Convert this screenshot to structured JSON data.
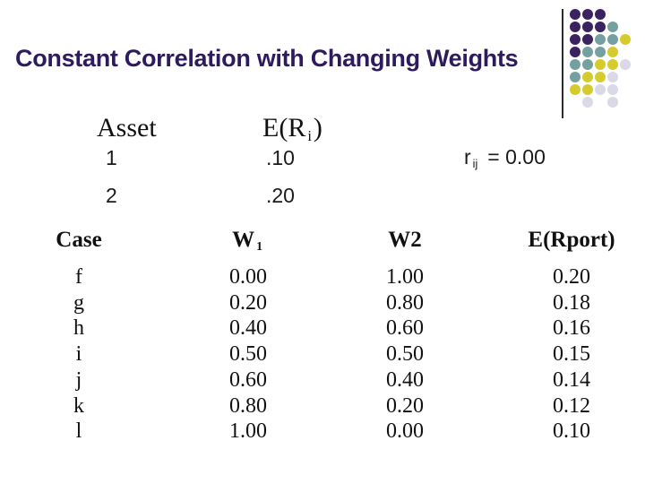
{
  "title": "Constant Correlation with Changing Weights",
  "colors": {
    "title": "#2d1b5e",
    "dot_purple": "#3b2260",
    "dot_teal": "#74a1a0",
    "dot_yellow": "#d6cb2d",
    "dot_lavender": "#d9d9e8"
  },
  "asset_block": {
    "col1_header": "Asset",
    "er_base": "E(R",
    "er_sub": "i",
    "er_close": ")",
    "rows": [
      {
        "asset": "1",
        "expected_return": ".10"
      },
      {
        "asset": "2",
        "expected_return": ".20"
      }
    ],
    "corr_base": "r",
    "corr_sub": "ij",
    "corr_value": "= 0.00"
  },
  "table": {
    "headers": {
      "case": "Case",
      "w1_base": "W",
      "w1_sub": "1",
      "w2": "W2",
      "erport": "E(Rport)"
    },
    "rows": [
      {
        "case": "f",
        "w1": "0.00",
        "w2": "1.00",
        "erport": "0.20"
      },
      {
        "case": "g",
        "w1": "0.20",
        "w2": "0.80",
        "erport": "0.18"
      },
      {
        "case": "h",
        "w1": "0.40",
        "w2": "0.60",
        "erport": "0.16"
      },
      {
        "case": "i",
        "w1": "0.50",
        "w2": "0.50",
        "erport": "0.15"
      },
      {
        "case": "j",
        "w1": "0.60",
        "w2": "0.40",
        "erport": "0.14"
      },
      {
        "case": "k",
        "w1": "0.80",
        "w2": "0.20",
        "erport": "0.12"
      },
      {
        "case": "l",
        "w1": "1.00",
        "w2": "0.00",
        "erport": "0.10"
      }
    ]
  },
  "decor": {
    "pattern": [
      "PPP..",
      "PPPT.",
      "PPTTY",
      "PTTY.",
      "TTYYL",
      "TYYL.",
      "YYLL.",
      ".L.L."
    ],
    "palette": {
      "P": "#3b2260",
      "T": "#74a1a0",
      "Y": "#d6cb2d",
      "L": "#d9d9e8"
    }
  }
}
